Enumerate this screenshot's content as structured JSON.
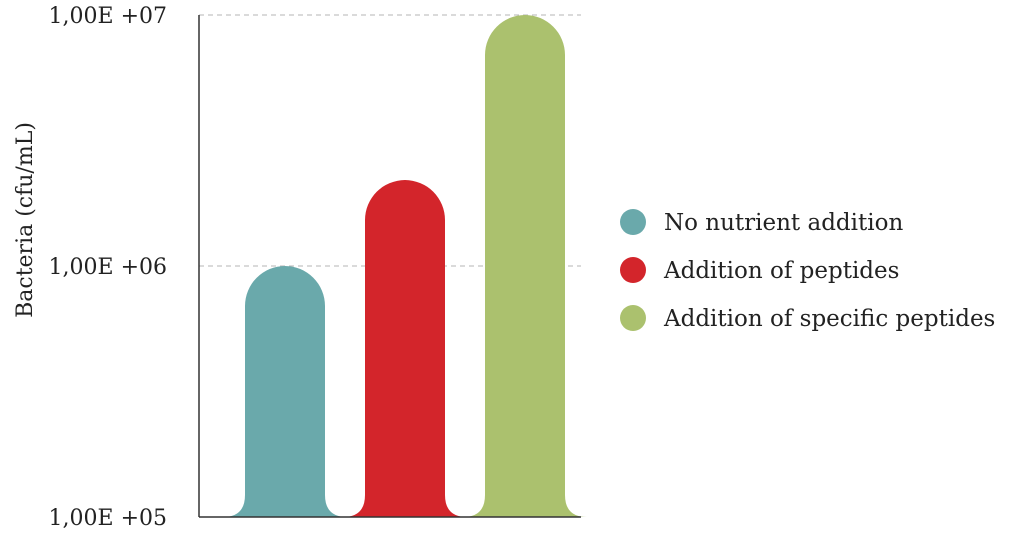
{
  "chart_data": {
    "type": "bar",
    "scale": "log",
    "ylabel": "Bacteria (cfu/mL)",
    "ylim": [
      100000,
      10000000
    ],
    "yticks": [
      {
        "value": 100000,
        "label": "1,00E +05"
      },
      {
        "value": 1000000,
        "label": "1,00E +06"
      },
      {
        "value": 10000000,
        "label": "1,00E +07"
      }
    ],
    "grid": "horizontal dashed",
    "legend_position": "right",
    "series": [
      {
        "name": "No nutrient addition",
        "value": 1000000,
        "color": "#6aa9ab"
      },
      {
        "name": "Addition of peptides",
        "value": 2200000,
        "color": "#d3252b"
      },
      {
        "name": "Addition of specific peptides",
        "value": 10000000,
        "color": "#abc16e"
      }
    ]
  }
}
